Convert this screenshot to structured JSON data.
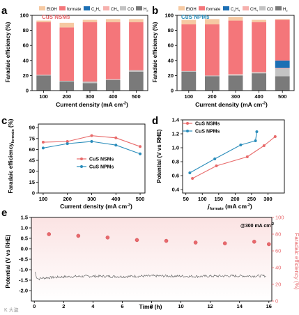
{
  "colors": {
    "EtOH": "#f6c9a2",
    "formate": "#f4767a",
    "C2H4": "#1c6fb4",
    "CH4": "#f6b0ad",
    "CO": "#c3c3c3",
    "H2": "#7a7a7a",
    "nsm_line": "#e86a6a",
    "npm_line": "#2a8dbb",
    "trace": "#6a6a6a",
    "fe_points": "#e8686c",
    "fe_axis": "#e8686c",
    "pink_band": "#fbe3e3"
  },
  "legend_labels": {
    "EtOH": "EtOH",
    "formate": "formate",
    "C2H4_base": "C",
    "C2H4_sub1": "2",
    "C2H4_mid": "H",
    "C2H4_sub2": "4",
    "CH4_base": "CH",
    "CH4_sub": "4",
    "CO": "CO",
    "H2_base": "H",
    "H2_sub": "2"
  },
  "watermark": "K 大盗",
  "chart_data": [
    {
      "panel": "a",
      "type": "bar",
      "stacked": true,
      "panel_label": "a",
      "inset_label": "CuS NSMs",
      "xlabel": "Current density (mA cm",
      "xlabel_sup": "-2",
      "xlabel_end": ")",
      "ylabel": "Faradaic efficiency (%)",
      "ylim": [
        0,
        100
      ],
      "yticks": [
        "0",
        "20",
        "40",
        "60",
        "80",
        "100"
      ],
      "categories": [
        "100",
        "200",
        "300",
        "400",
        "500"
      ],
      "series": [
        {
          "name": "H2",
          "values": [
            20,
            12,
            10,
            14,
            25
          ]
        },
        {
          "name": "CO",
          "values": [
            1,
            1,
            2,
            1,
            2
          ]
        },
        {
          "name": "CH4",
          "values": [
            0,
            0,
            0,
            0,
            0
          ]
        },
        {
          "name": "C2H4",
          "values": [
            0,
            0,
            0,
            0,
            0
          ]
        },
        {
          "name": "formate",
          "values": [
            70,
            71,
            79,
            76,
            64
          ]
        },
        {
          "name": "EtOH",
          "values": [
            2,
            6,
            3,
            4,
            4
          ]
        }
      ]
    },
    {
      "panel": "b",
      "type": "bar",
      "stacked": true,
      "panel_label": "b",
      "inset_label": "CuS NPMs",
      "xlabel": "Current density (mA cm",
      "xlabel_sup": "-2",
      "xlabel_end": ")",
      "ylabel": "Faradaic efficiency (%)",
      "ylim": [
        0,
        100
      ],
      "yticks": [
        "0",
        "20",
        "40",
        "60",
        "80",
        "100"
      ],
      "categories": [
        "100",
        "200",
        "300",
        "400",
        "500"
      ],
      "series": [
        {
          "name": "H2",
          "values": [
            25,
            19,
            20,
            23,
            19
          ]
        },
        {
          "name": "CO",
          "values": [
            1,
            1,
            1,
            1,
            10
          ]
        },
        {
          "name": "CH4",
          "values": [
            0,
            0,
            1,
            1,
            1
          ]
        },
        {
          "name": "C2H4",
          "values": [
            0,
            0,
            0,
            0,
            10
          ]
        },
        {
          "name": "formate",
          "values": [
            62,
            68,
            71,
            66,
            54
          ]
        },
        {
          "name": "EtOH",
          "values": [
            6,
            7,
            5,
            3,
            1
          ]
        }
      ]
    },
    {
      "panel": "c",
      "type": "line",
      "panel_label": "c",
      "xlabel": "Current density (mA cm",
      "xlabel_sup": "-2",
      "xlabel_end": ")",
      "ylabel": "Faradaic efficiency",
      "ylabel_sub": "formate",
      "ylabel_end": " (%)",
      "xlim": [
        80,
        520
      ],
      "ylim": [
        0,
        95
      ],
      "xticks": [
        100,
        200,
        300,
        400,
        500
      ],
      "yticks": [
        0,
        15,
        30,
        45,
        60,
        75,
        90
      ],
      "x": [
        100,
        200,
        300,
        400,
        500
      ],
      "series": [
        {
          "name": "CuS NSMs",
          "values": [
            70,
            71,
            79,
            76,
            64
          ]
        },
        {
          "name": "CuS NPMs",
          "values": [
            62,
            68,
            71,
            66,
            54
          ]
        }
      ],
      "legend": "center"
    },
    {
      "panel": "d",
      "type": "line",
      "panel_label": "d",
      "xlabel_j": "j",
      "xlabel_sub": "formate",
      "xlabel_rest": " (mA cm",
      "xlabel_sup": "-2",
      "xlabel_end": ")",
      "ylabel": "Potential (V vs RHE)",
      "xlim": [
        40,
        350
      ],
      "ylim": [
        0.35,
        1.4
      ],
      "xticks": [
        50,
        100,
        150,
        200,
        250,
        300
      ],
      "yticks": [
        0.4,
        0.6,
        0.8,
        1.0,
        1.2,
        1.4
      ],
      "ytick_labels": [
        "0.4",
        "0.6",
        "0.8",
        "1.0",
        "1.2",
        "1.4"
      ],
      "series": [
        {
          "name": "CuS NSMs",
          "x": [
            70,
            143,
            237,
            288,
            322
          ],
          "y": [
            0.56,
            0.74,
            0.87,
            1.03,
            1.16
          ]
        },
        {
          "name": "CuS NPMs",
          "x": [
            62,
            138,
            217,
            262,
            266
          ],
          "y": [
            0.64,
            0.84,
            1.04,
            1.1,
            1.23
          ]
        }
      ],
      "legend": "top-left"
    },
    {
      "panel": "e",
      "type": "scatter",
      "panel_label": "e",
      "annotation": "@300 mA cm",
      "annotation_sup": "-2",
      "xlabel": "Time (h)",
      "ylabel_left": "Potential (V vs RHE)",
      "ylabel_right": "Faradaic efficiency (%)",
      "xlim": [
        -0.2,
        16.2
      ],
      "xticks": [
        0,
        2,
        4,
        6,
        8,
        10,
        12,
        14,
        16
      ],
      "ylim_left": [
        -2.5,
        1.5
      ],
      "yticks_left": [
        "-2.0",
        "-1.5",
        "-1.0",
        "-0.5",
        "0.0",
        "0.5",
        "1.0",
        "1.5"
      ],
      "yticks_left_values": [
        -2.0,
        -1.5,
        -1.0,
        -0.5,
        0.0,
        0.5,
        1.0,
        1.5
      ],
      "ylim_right": [
        0,
        100
      ],
      "yticks_right": [
        0,
        20,
        40,
        60,
        80,
        100
      ],
      "potential_trace": {
        "x": [
          0.05,
          0.15,
          0.3,
          0.5,
          1,
          2,
          3,
          4,
          5,
          6,
          7,
          8,
          9,
          10,
          11,
          12,
          13,
          14,
          15,
          15.8
        ],
        "y": [
          -1.1,
          -1.35,
          -1.45,
          -1.4,
          -1.38,
          -1.34,
          -1.32,
          -1.31,
          -1.32,
          -1.33,
          -1.31,
          -1.3,
          -1.3,
          -1.31,
          -1.32,
          -1.31,
          -1.3,
          -1.3,
          -1.3,
          -1.3
        ]
      },
      "fe_points": {
        "x": [
          1,
          3,
          5,
          7,
          9,
          11,
          13,
          15,
          16
        ],
        "y": [
          80,
          78,
          76,
          73,
          72,
          70,
          69,
          71,
          68
        ]
      }
    }
  ]
}
